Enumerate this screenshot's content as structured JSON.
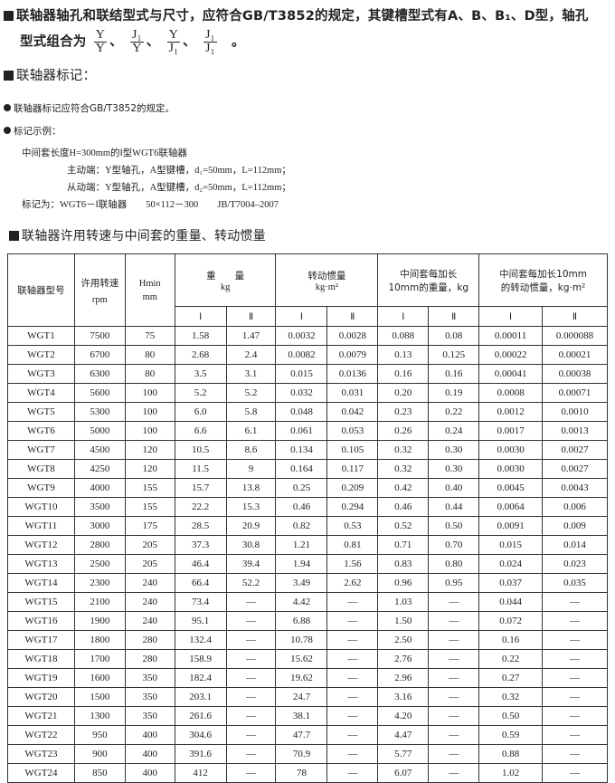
{
  "intro": {
    "line1": "联轴器轴孔和联结型式与尺寸，应符合GB/T3852的规定，其键槽型式有A、B、B₁、D型，轴孔",
    "line2_prefix": "型式组合为",
    "combos": [
      {
        "num": "Y",
        "den": "Y"
      },
      {
        "num": "J₁",
        "den": "Y"
      },
      {
        "num": "Y",
        "den": "J₁"
      },
      {
        "num": "J₁",
        "den": "J₁"
      }
    ],
    "sep": "、",
    "end": "。"
  },
  "marking": {
    "heading": "联轴器标记：",
    "bullet1": "联轴器标记应符合GB/T3852的规定。",
    "bullet2": "标记示例：",
    "example_line1": "中间套长度H=300mm的Ⅰ型WGT6联轴器",
    "example_line2": "主动端：Y型轴孔，A型键槽，d₁=50mm，L=112mm；",
    "example_line3": "从动端：Y型轴孔，A型键槽，d₂=50mm，L=112mm；",
    "example_line4": "标记为：WGT6－Ⅰ联轴器　　50×112－300　　JB/T7004–2007"
  },
  "table_section": {
    "heading": "联轴器许用转速与中间套的重量、转动惯量",
    "headers": {
      "model": "联轴器型号",
      "speed": "许用转速",
      "speed_unit": "rpm",
      "hmin": "Hmin",
      "hmin_unit": "mm",
      "weight": "重　　量",
      "weight_unit": "kg",
      "inertia": "转动惯量",
      "inertia_unit": "kg·m²",
      "wper10": "中间套每加长",
      "wper10_unit": "10mm的重量，kg",
      "iper10": "中间套每加长10mm",
      "iper10_unit": "的转动惯量，kg·m²",
      "sub": [
        "Ⅰ",
        "Ⅱ",
        "Ⅰ",
        "Ⅱ",
        "Ⅰ",
        "Ⅱ",
        "Ⅰ",
        "Ⅱ"
      ]
    },
    "rows": [
      [
        "WGT1",
        "7500",
        "75",
        "1.58",
        "1.47",
        "0.0032",
        "0.0028",
        "0.088",
        "0.08",
        "0.00011",
        "0.000088"
      ],
      [
        "WGT2",
        "6700",
        "80",
        "2.68",
        "2.4",
        "0.0082",
        "0.0079",
        "0.13",
        "0.125",
        "0.00022",
        "0.00021"
      ],
      [
        "WGT3",
        "6300",
        "80",
        "3.5",
        "3.1",
        "0.015",
        "0.0136",
        "0.16",
        "0.16",
        "0.00041",
        "0.00038"
      ],
      [
        "WGT4",
        "5600",
        "100",
        "5.2",
        "5.2",
        "0.032",
        "0.031",
        "0.20",
        "0.19",
        "0.0008",
        "0.00071"
      ],
      [
        "WGT5",
        "5300",
        "100",
        "6.0",
        "5.8",
        "0.048",
        "0.042",
        "0.23",
        "0.22",
        "0.0012",
        "0.0010"
      ],
      [
        "WGT6",
        "5000",
        "100",
        "6.6",
        "6.1",
        "0.061",
        "0.053",
        "0.26",
        "0.24",
        "0.0017",
        "0.0013"
      ],
      [
        "WGT7",
        "4500",
        "120",
        "10.5",
        "8.6",
        "0.134",
        "0.105",
        "0.32",
        "0.30",
        "0.0030",
        "0.0027"
      ],
      [
        "WGT8",
        "4250",
        "120",
        "11.5",
        "9",
        "0.164",
        "0.117",
        "0.32",
        "0.30",
        "0.0030",
        "0.0027"
      ],
      [
        "WGT9",
        "4000",
        "155",
        "15.7",
        "13.8",
        "0.25",
        "0.209",
        "0.42",
        "0.40",
        "0.0045",
        "0.0043"
      ],
      [
        "WGT10",
        "3500",
        "155",
        "22.2",
        "15.3",
        "0.46",
        "0.294",
        "0.46",
        "0.44",
        "0.0064",
        "0.006"
      ],
      [
        "WGT11",
        "3000",
        "175",
        "28.5",
        "20.9",
        "0.82",
        "0.53",
        "0.52",
        "0.50",
        "0.0091",
        "0.009"
      ],
      [
        "WGT12",
        "2800",
        "205",
        "37.3",
        "30.8",
        "1.21",
        "0.81",
        "0.71",
        "0.70",
        "0.015",
        "0.014"
      ],
      [
        "WGT13",
        "2500",
        "205",
        "46.4",
        "39.4",
        "1.94",
        "1.56",
        "0.83",
        "0.80",
        "0.024",
        "0.023"
      ],
      [
        "WGT14",
        "2300",
        "240",
        "66.4",
        "52.2",
        "3.49",
        "2.62",
        "0.96",
        "0.95",
        "0.037",
        "0.035"
      ],
      [
        "WGT15",
        "2100",
        "240",
        "73.4",
        "—",
        "4.42",
        "—",
        "1.03",
        "—",
        "0.044",
        "—"
      ],
      [
        "WGT16",
        "1900",
        "240",
        "95.1",
        "—",
        "6.88",
        "—",
        "1.50",
        "—",
        "0.072",
        "—"
      ],
      [
        "WGT17",
        "1800",
        "280",
        "132.4",
        "—",
        "10.78",
        "—",
        "2.50",
        "—",
        "0.16",
        "—"
      ],
      [
        "WGT18",
        "1700",
        "280",
        "158.9",
        "—",
        "15.62",
        "—",
        "2.76",
        "—",
        "0.22",
        "—"
      ],
      [
        "WGT19",
        "1600",
        "350",
        "182.4",
        "—",
        "19.62",
        "—",
        "2.96",
        "—",
        "0.27",
        "—"
      ],
      [
        "WGT20",
        "1500",
        "350",
        "203.1",
        "—",
        "24.7",
        "—",
        "3.16",
        "—",
        "0.32",
        "—"
      ],
      [
        "WGT21",
        "1300",
        "350",
        "261.6",
        "—",
        "38.1",
        "—",
        "4.20",
        "—",
        "0.50",
        "—"
      ],
      [
        "WGT22",
        "950",
        "400",
        "304.6",
        "—",
        "47.7",
        "—",
        "4.47",
        "—",
        "0.59",
        "—"
      ],
      [
        "WGT23",
        "900",
        "400",
        "391.6",
        "—",
        "70.9",
        "—",
        "5.77",
        "—",
        "0.88",
        "—"
      ],
      [
        "WGT24",
        "850",
        "400",
        "412",
        "—",
        "78",
        "—",
        "6.07",
        "—",
        "1.02",
        "—"
      ]
    ]
  }
}
